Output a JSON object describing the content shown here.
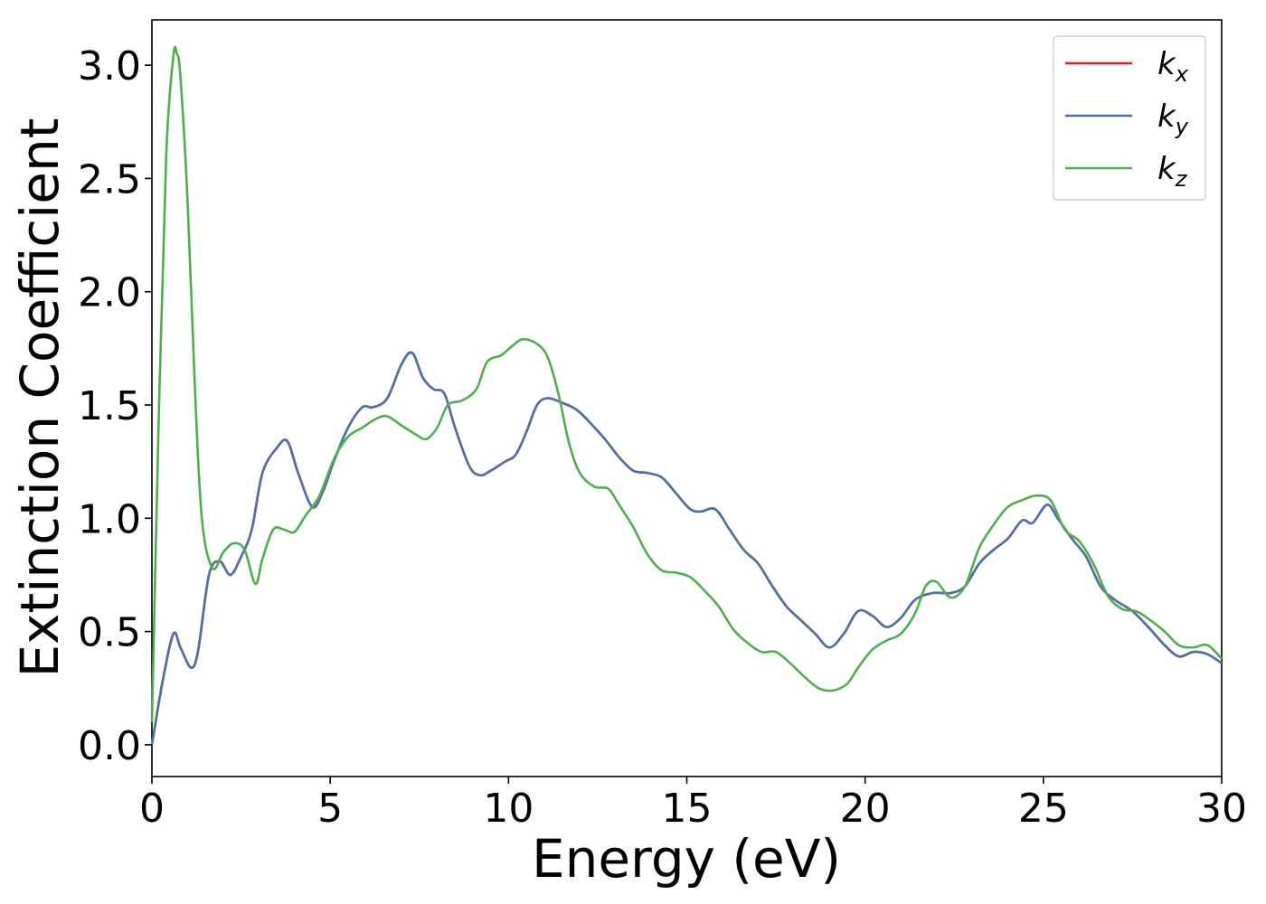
{
  "chart_data": {
    "type": "line",
    "title": "",
    "xlabel": "Energy (eV)",
    "ylabel": "Extinction Coefficient",
    "xlim": [
      0,
      30
    ],
    "ylim": [
      -0.14,
      3.2
    ],
    "xticks": [
      0,
      5,
      10,
      15,
      20,
      25,
      30
    ],
    "xtick_labels": [
      "0",
      "5",
      "10",
      "15",
      "20",
      "25",
      "30"
    ],
    "yticks": [
      0.0,
      0.5,
      1.0,
      1.5,
      2.0,
      2.5,
      3.0
    ],
    "ytick_labels": [
      "0.0",
      "0.5",
      "1.0",
      "1.5",
      "2.0",
      "2.5",
      "3.0"
    ],
    "grid": false,
    "legend_position": "top-right",
    "series": [
      {
        "name": "k",
        "subscript": "x",
        "color": "#e41a1c",
        "x": [
          0,
          0.3,
          0.6,
          0.8,
          1.1,
          1.3,
          1.6,
          1.9,
          2.2,
          2.5,
          2.8,
          3.1,
          3.5,
          3.8,
          4.1,
          4.5,
          4.8,
          5.1,
          5.5,
          5.9,
          6.2,
          6.6,
          7.0,
          7.3,
          7.6,
          7.9,
          8.2,
          8.5,
          8.9,
          9.2,
          9.5,
          9.9,
          10.2,
          10.5,
          10.8,
          11.1,
          11.5,
          11.9,
          12.3,
          12.7,
          13.1,
          13.5,
          13.9,
          14.3,
          14.7,
          15.1,
          15.4,
          15.8,
          16.2,
          16.6,
          17.0,
          17.4,
          17.8,
          18.2,
          18.6,
          19.0,
          19.4,
          19.8,
          20.2,
          20.6,
          21.0,
          21.4,
          21.9,
          22.4,
          22.8,
          23.2,
          23.6,
          24.0,
          24.4,
          24.7,
          25.1,
          25.4,
          25.8,
          26.2,
          26.6,
          27.0,
          27.5,
          28.0,
          28.4,
          28.8,
          29.2,
          29.6,
          30.0
        ],
        "values": [
          0.0,
          0.28,
          0.49,
          0.43,
          0.34,
          0.42,
          0.75,
          0.81,
          0.75,
          0.83,
          0.95,
          1.2,
          1.31,
          1.34,
          1.2,
          1.05,
          1.12,
          1.25,
          1.4,
          1.49,
          1.49,
          1.53,
          1.68,
          1.73,
          1.62,
          1.57,
          1.55,
          1.4,
          1.23,
          1.19,
          1.21,
          1.25,
          1.28,
          1.38,
          1.5,
          1.53,
          1.51,
          1.48,
          1.42,
          1.35,
          1.27,
          1.21,
          1.2,
          1.18,
          1.11,
          1.04,
          1.03,
          1.04,
          0.95,
          0.86,
          0.8,
          0.7,
          0.61,
          0.55,
          0.49,
          0.43,
          0.49,
          0.59,
          0.57,
          0.52,
          0.56,
          0.64,
          0.67,
          0.67,
          0.7,
          0.8,
          0.86,
          0.91,
          0.99,
          0.98,
          1.06,
          1.0,
          0.91,
          0.83,
          0.7,
          0.64,
          0.59,
          0.51,
          0.44,
          0.39,
          0.41,
          0.4,
          0.36
        ]
      },
      {
        "name": "k",
        "subscript": "y",
        "color": "#4a72aa",
        "x": [
          0,
          0.3,
          0.6,
          0.8,
          1.1,
          1.3,
          1.6,
          1.9,
          2.2,
          2.5,
          2.8,
          3.1,
          3.5,
          3.8,
          4.1,
          4.5,
          4.8,
          5.1,
          5.5,
          5.9,
          6.2,
          6.6,
          7.0,
          7.3,
          7.6,
          7.9,
          8.2,
          8.5,
          8.9,
          9.2,
          9.5,
          9.9,
          10.2,
          10.5,
          10.8,
          11.1,
          11.5,
          11.9,
          12.3,
          12.7,
          13.1,
          13.5,
          13.9,
          14.3,
          14.7,
          15.1,
          15.4,
          15.8,
          16.2,
          16.6,
          17.0,
          17.4,
          17.8,
          18.2,
          18.6,
          19.0,
          19.4,
          19.8,
          20.2,
          20.6,
          21.0,
          21.4,
          21.9,
          22.4,
          22.8,
          23.2,
          23.6,
          24.0,
          24.4,
          24.7,
          25.1,
          25.4,
          25.8,
          26.2,
          26.6,
          27.0,
          27.5,
          28.0,
          28.4,
          28.8,
          29.2,
          29.6,
          30.0
        ],
        "values": [
          0.0,
          0.28,
          0.49,
          0.43,
          0.34,
          0.42,
          0.75,
          0.81,
          0.75,
          0.83,
          0.95,
          1.2,
          1.31,
          1.34,
          1.2,
          1.05,
          1.12,
          1.25,
          1.4,
          1.49,
          1.49,
          1.53,
          1.68,
          1.73,
          1.62,
          1.57,
          1.55,
          1.4,
          1.23,
          1.19,
          1.21,
          1.25,
          1.28,
          1.38,
          1.5,
          1.53,
          1.51,
          1.48,
          1.42,
          1.35,
          1.27,
          1.21,
          1.2,
          1.18,
          1.11,
          1.04,
          1.03,
          1.04,
          0.95,
          0.86,
          0.8,
          0.7,
          0.61,
          0.55,
          0.49,
          0.43,
          0.49,
          0.59,
          0.57,
          0.52,
          0.56,
          0.64,
          0.67,
          0.67,
          0.7,
          0.8,
          0.86,
          0.91,
          0.99,
          0.98,
          1.06,
          1.0,
          0.91,
          0.83,
          0.7,
          0.64,
          0.59,
          0.51,
          0.44,
          0.39,
          0.41,
          0.4,
          0.36
        ]
      },
      {
        "name": "k",
        "subscript": "z",
        "color": "#4daf4a",
        "x": [
          0,
          0.2,
          0.4,
          0.6,
          0.7,
          0.8,
          1.0,
          1.2,
          1.4,
          1.7,
          2.0,
          2.3,
          2.6,
          2.9,
          3.1,
          3.4,
          3.7,
          4.0,
          4.3,
          4.7,
          5.1,
          5.5,
          5.9,
          6.3,
          6.6,
          7.0,
          7.4,
          7.7,
          8.0,
          8.3,
          8.7,
          9.1,
          9.4,
          9.8,
          10.1,
          10.4,
          10.8,
          11.1,
          11.4,
          11.7,
          12.0,
          12.4,
          12.8,
          13.1,
          13.5,
          13.9,
          14.3,
          14.7,
          15.1,
          15.5,
          15.9,
          16.3,
          16.7,
          17.1,
          17.5,
          17.9,
          18.3,
          18.7,
          19.1,
          19.5,
          19.8,
          20.2,
          20.6,
          21.0,
          21.4,
          21.7,
          22.0,
          22.4,
          22.8,
          23.2,
          23.6,
          24.0,
          24.4,
          24.8,
          25.2,
          25.6,
          26.0,
          26.4,
          26.8,
          27.2,
          27.6,
          28.0,
          28.4,
          28.8,
          29.2,
          29.6,
          30.0
        ],
        "values": [
          0.1,
          1.5,
          2.6,
          3.04,
          3.05,
          2.95,
          2.4,
          1.6,
          1.0,
          0.78,
          0.85,
          0.89,
          0.86,
          0.71,
          0.82,
          0.95,
          0.95,
          0.94,
          1.01,
          1.1,
          1.26,
          1.36,
          1.4,
          1.44,
          1.45,
          1.41,
          1.37,
          1.35,
          1.4,
          1.5,
          1.52,
          1.57,
          1.69,
          1.72,
          1.76,
          1.79,
          1.77,
          1.71,
          1.55,
          1.33,
          1.2,
          1.14,
          1.13,
          1.06,
          0.96,
          0.84,
          0.77,
          0.76,
          0.74,
          0.68,
          0.61,
          0.51,
          0.45,
          0.41,
          0.41,
          0.36,
          0.3,
          0.25,
          0.24,
          0.27,
          0.34,
          0.42,
          0.46,
          0.49,
          0.58,
          0.7,
          0.72,
          0.65,
          0.7,
          0.87,
          0.97,
          1.05,
          1.08,
          1.1,
          1.08,
          0.95,
          0.9,
          0.8,
          0.66,
          0.6,
          0.59,
          0.55,
          0.5,
          0.44,
          0.43,
          0.44,
          0.38
        ]
      }
    ]
  }
}
